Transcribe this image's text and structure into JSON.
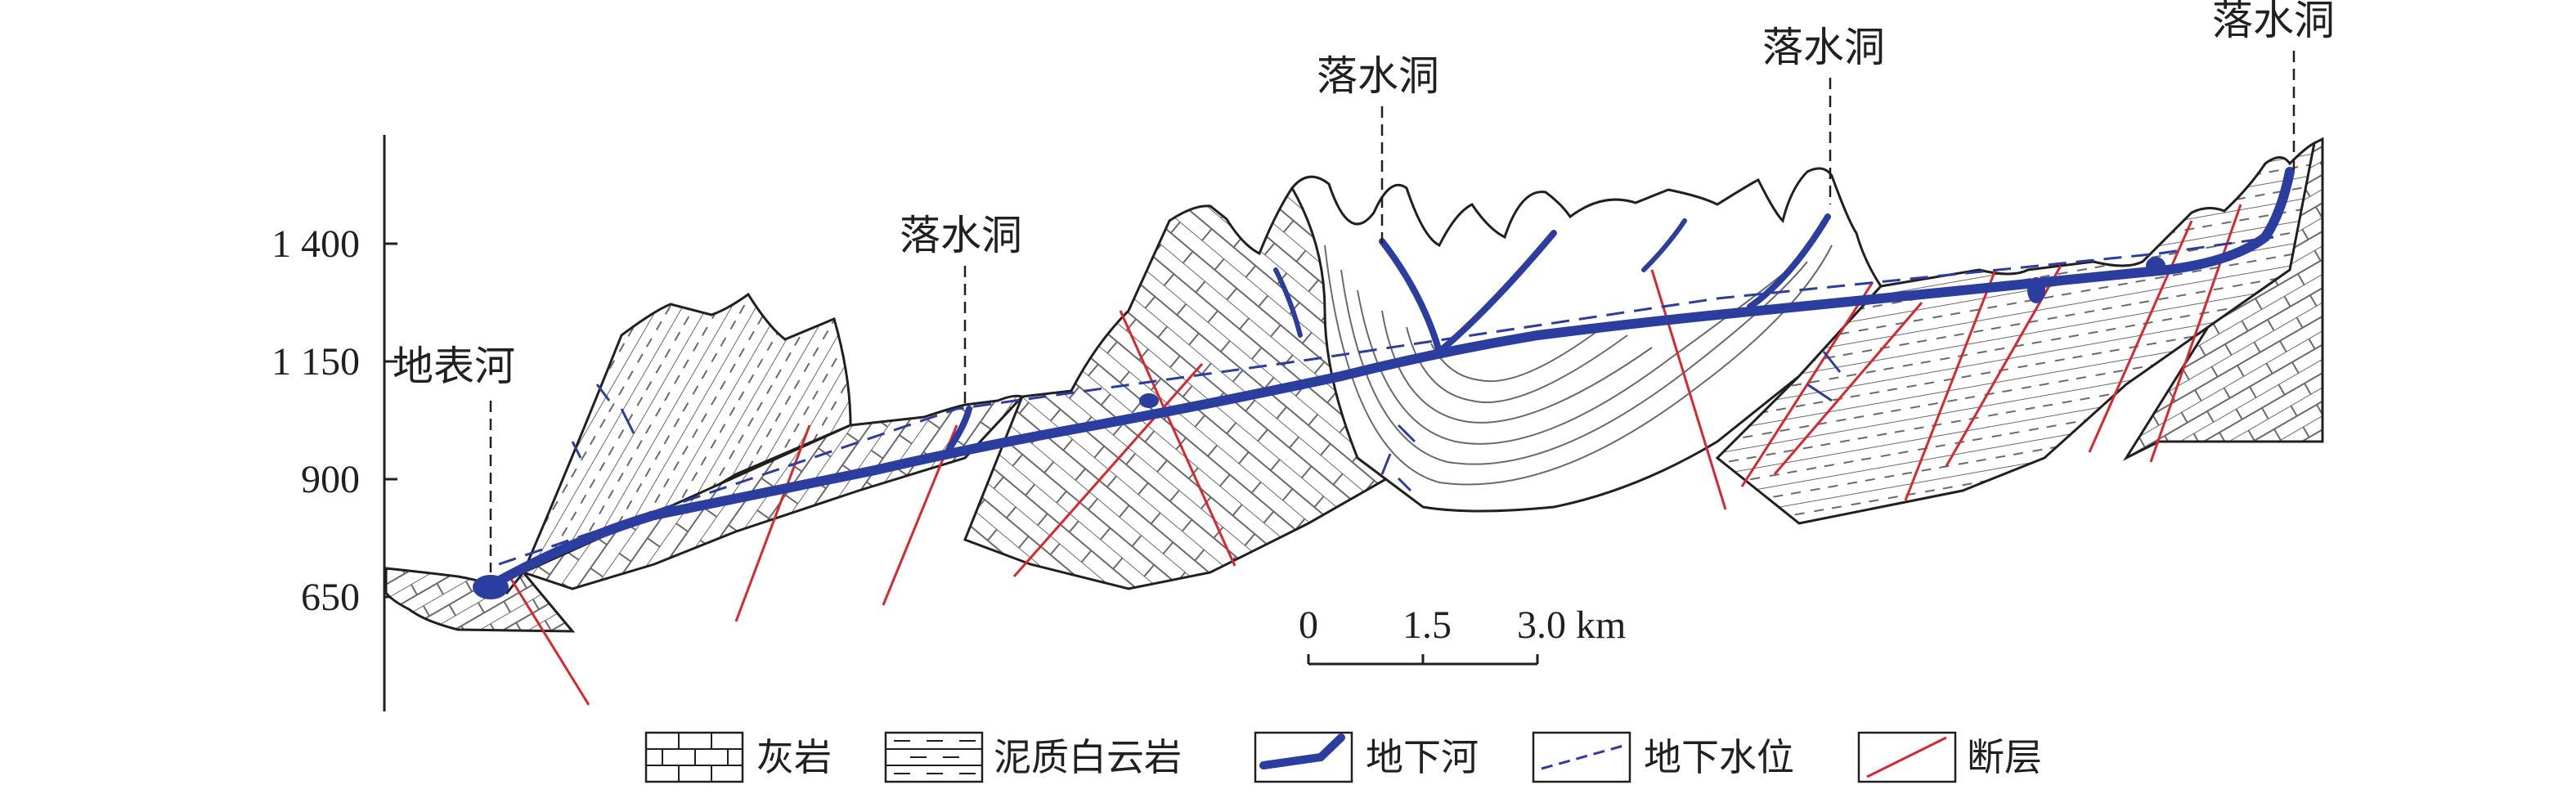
{
  "axis": {
    "ticks": [
      "1 400",
      "1 150",
      "900",
      "650"
    ]
  },
  "labels": {
    "surface_river": "地表河",
    "sinkholes": [
      "落水洞",
      "落水洞",
      "落水洞",
      "落水洞"
    ]
  },
  "scale_bar": {
    "ticks": [
      "0",
      "1.5",
      "3.0 km"
    ]
  },
  "legend": [
    {
      "label": "灰岩"
    },
    {
      "label": "泥质白云岩"
    },
    {
      "label": "地下河"
    },
    {
      "label": "地下水位"
    },
    {
      "label": "断层"
    }
  ],
  "colors": {
    "underground_river": "#2b3d9e",
    "water_table": "#2b3d9e",
    "fault": "#d7282f",
    "lithology_lines": "#555555",
    "outline": "#231f20"
  }
}
